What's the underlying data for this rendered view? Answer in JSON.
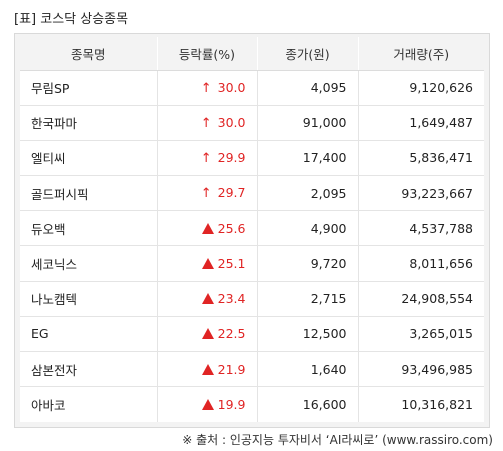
{
  "title": "[표] 코스닥 상승종목",
  "headers": [
    "종목명",
    "등락률(%)",
    "종가(원)",
    "거래량(주)"
  ],
  "rows": [
    {
      "name": "무림SP",
      "marker": "arrow",
      "rate": "30.0",
      "close": "4,095",
      "volume": "9,120,626"
    },
    {
      "name": "한국파마",
      "marker": "arrow",
      "rate": "30.0",
      "close": "91,000",
      "volume": "1,649,487"
    },
    {
      "name": "엘티씨",
      "marker": "arrow",
      "rate": "29.9",
      "close": "17,400",
      "volume": "5,836,471"
    },
    {
      "name": "골드퍼시픽",
      "marker": "arrow",
      "rate": "29.7",
      "close": "2,095",
      "volume": "93,223,667"
    },
    {
      "name": "듀오백",
      "marker": "triangle",
      "rate": "25.6",
      "close": "4,900",
      "volume": "4,537,788"
    },
    {
      "name": "세코닉스",
      "marker": "triangle",
      "rate": "25.1",
      "close": "9,720",
      "volume": "8,011,656"
    },
    {
      "name": "나노캠텍",
      "marker": "triangle",
      "rate": "23.4",
      "close": "2,715",
      "volume": "24,908,554"
    },
    {
      "name": "EG",
      "marker": "triangle",
      "rate": "22.5",
      "close": "12,500",
      "volume": "3,265,015"
    },
    {
      "name": "삼본전자",
      "marker": "triangle",
      "rate": "21.9",
      "close": "1,640",
      "volume": "93,496,985"
    },
    {
      "name": "아바코",
      "marker": "triangle",
      "rate": "19.9",
      "close": "16,600",
      "volume": "10,316,821"
    }
  ],
  "source": "※ 출처 : 인공지능 투자비서 ‘AI라씨로’ (www.rassiro.com)",
  "colors": {
    "up": "#e02424",
    "header_bg": "#f3f3f3"
  }
}
